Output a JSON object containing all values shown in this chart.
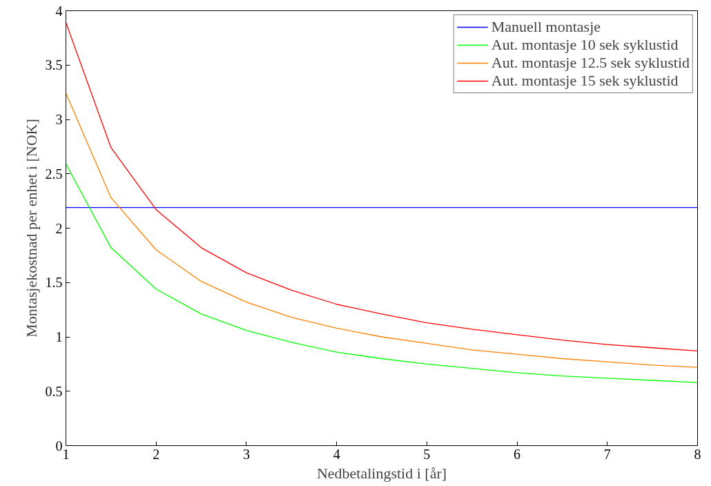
{
  "chart_data": {
    "type": "line",
    "xlabel": "Nedbetalingstid i [år]",
    "ylabel": "Montasjekostnad per enhet i [NOK]",
    "x": [
      1,
      1.5,
      2,
      2.5,
      3,
      3.5,
      4,
      4.5,
      5,
      5.5,
      6,
      6.5,
      7,
      7.5,
      8
    ],
    "series": [
      {
        "name": "Manuell montasje",
        "color": "#0000ff",
        "x": [
          1,
          8
        ],
        "values": [
          2.19,
          2.19
        ]
      },
      {
        "name": "Aut. montasje 10 sek syklustid",
        "color": "#00ff00",
        "values": [
          2.59,
          1.82,
          1.44,
          1.21,
          1.06,
          0.95,
          0.86,
          0.8,
          0.75,
          0.71,
          0.67,
          0.64,
          0.62,
          0.6,
          0.58
        ]
      },
      {
        "name": "Aut. montasje 12.5 sek syklustid",
        "color": "#ff8000",
        "values": [
          3.24,
          2.28,
          1.8,
          1.51,
          1.32,
          1.18,
          1.08,
          1.0,
          0.94,
          0.88,
          0.84,
          0.8,
          0.77,
          0.74,
          0.72
        ]
      },
      {
        "name": "Aut. montasje 15 sek syklustid",
        "color": "#ff0000",
        "values": [
          3.89,
          2.74,
          2.17,
          1.82,
          1.59,
          1.43,
          1.3,
          1.21,
          1.13,
          1.07,
          1.02,
          0.97,
          0.93,
          0.9,
          0.87
        ]
      }
    ],
    "xlim": [
      1,
      8
    ],
    "ylim": [
      0,
      4
    ],
    "xticks": [
      1,
      2,
      3,
      4,
      5,
      6,
      7,
      8
    ],
    "yticks": [
      0,
      0.5,
      1,
      1.5,
      2,
      2.5,
      3,
      3.5,
      4
    ],
    "grid": false,
    "legend": "top right",
    "marker": "none",
    "line_style": "solid"
  }
}
